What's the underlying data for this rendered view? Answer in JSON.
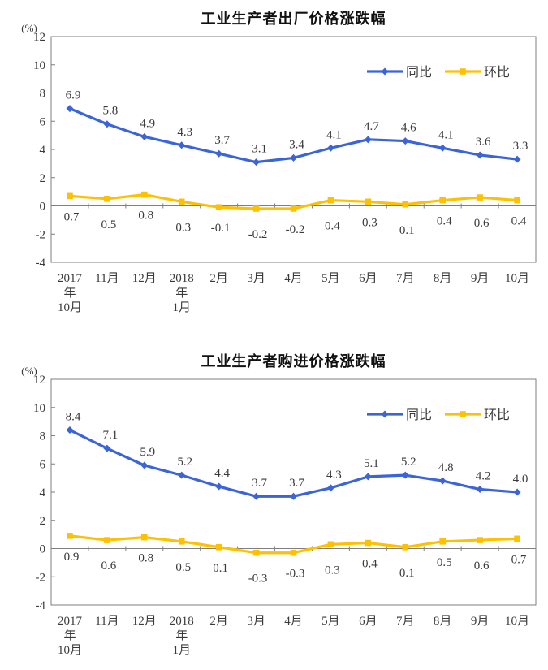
{
  "page": {
    "background": "#ffffff"
  },
  "chart_data": [
    {
      "type": "line",
      "title": "工业生产者出厂价格涨跌幅",
      "ylabel": "(%)",
      "xlabel": "",
      "ylim": [
        -4,
        12
      ],
      "yticks": [
        12,
        10,
        8,
        6,
        4,
        2,
        0,
        -2,
        -4
      ],
      "grid": false,
      "legend_position": "top-right",
      "axis_color": "#7f7f7f",
      "text_color": "#3a3a3a",
      "categories": [
        "2017年10月",
        "11月",
        "12月",
        "2018年1月",
        "2月",
        "3月",
        "4月",
        "5月",
        "6月",
        "7月",
        "8月",
        "9月",
        "10月"
      ],
      "category_label_lines": [
        [
          "2017",
          "年",
          "10月"
        ],
        [
          "11月"
        ],
        [
          "12月"
        ],
        [
          "2018",
          "年",
          "1月"
        ],
        [
          "2月"
        ],
        [
          "3月"
        ],
        [
          "4月"
        ],
        [
          "5月"
        ],
        [
          "6月"
        ],
        [
          "7月"
        ],
        [
          "8月"
        ],
        [
          "9月"
        ],
        [
          "10月"
        ]
      ],
      "series": [
        {
          "name": "同比",
          "color": "#3c64d9",
          "marker": "diamond",
          "values": [
            6.9,
            5.8,
            4.9,
            4.3,
            3.7,
            3.1,
            3.4,
            4.1,
            4.7,
            4.6,
            4.1,
            3.6,
            3.3
          ]
        },
        {
          "name": "环比",
          "color": "#ffc000",
          "marker": "square",
          "values": [
            0.7,
            0.5,
            0.8,
            0.3,
            -0.1,
            -0.2,
            -0.2,
            0.4,
            0.3,
            0.1,
            0.4,
            0.6,
            0.4
          ]
        }
      ]
    },
    {
      "type": "line",
      "title": "工业生产者购进价格涨跌幅",
      "ylabel": "(%)",
      "xlabel": "",
      "ylim": [
        -4,
        12
      ],
      "yticks": [
        12,
        10,
        8,
        6,
        4,
        2,
        0,
        -2,
        -4
      ],
      "grid": false,
      "legend_position": "top-right",
      "axis_color": "#7f7f7f",
      "text_color": "#3a3a3a",
      "categories": [
        "2017年10月",
        "11月",
        "12月",
        "2018年1月",
        "2月",
        "3月",
        "4月",
        "5月",
        "6月",
        "7月",
        "8月",
        "9月",
        "10月"
      ],
      "category_label_lines": [
        [
          "2017",
          "年",
          "10月"
        ],
        [
          "11月"
        ],
        [
          "12月"
        ],
        [
          "2018",
          "年",
          "1月"
        ],
        [
          "2月"
        ],
        [
          "3月"
        ],
        [
          "4月"
        ],
        [
          "5月"
        ],
        [
          "6月"
        ],
        [
          "7月"
        ],
        [
          "8月"
        ],
        [
          "9月"
        ],
        [
          "10月"
        ]
      ],
      "series": [
        {
          "name": "同比",
          "color": "#3c64d9",
          "marker": "diamond",
          "values": [
            8.4,
            7.1,
            5.9,
            5.2,
            4.4,
            3.7,
            3.7,
            4.3,
            5.1,
            5.2,
            4.8,
            4.2,
            4.0
          ]
        },
        {
          "name": "环比",
          "color": "#ffc000",
          "marker": "square",
          "values": [
            0.9,
            0.6,
            0.8,
            0.5,
            0.1,
            -0.3,
            -0.3,
            0.3,
            0.4,
            0.1,
            0.5,
            0.6,
            0.7
          ]
        }
      ]
    }
  ]
}
